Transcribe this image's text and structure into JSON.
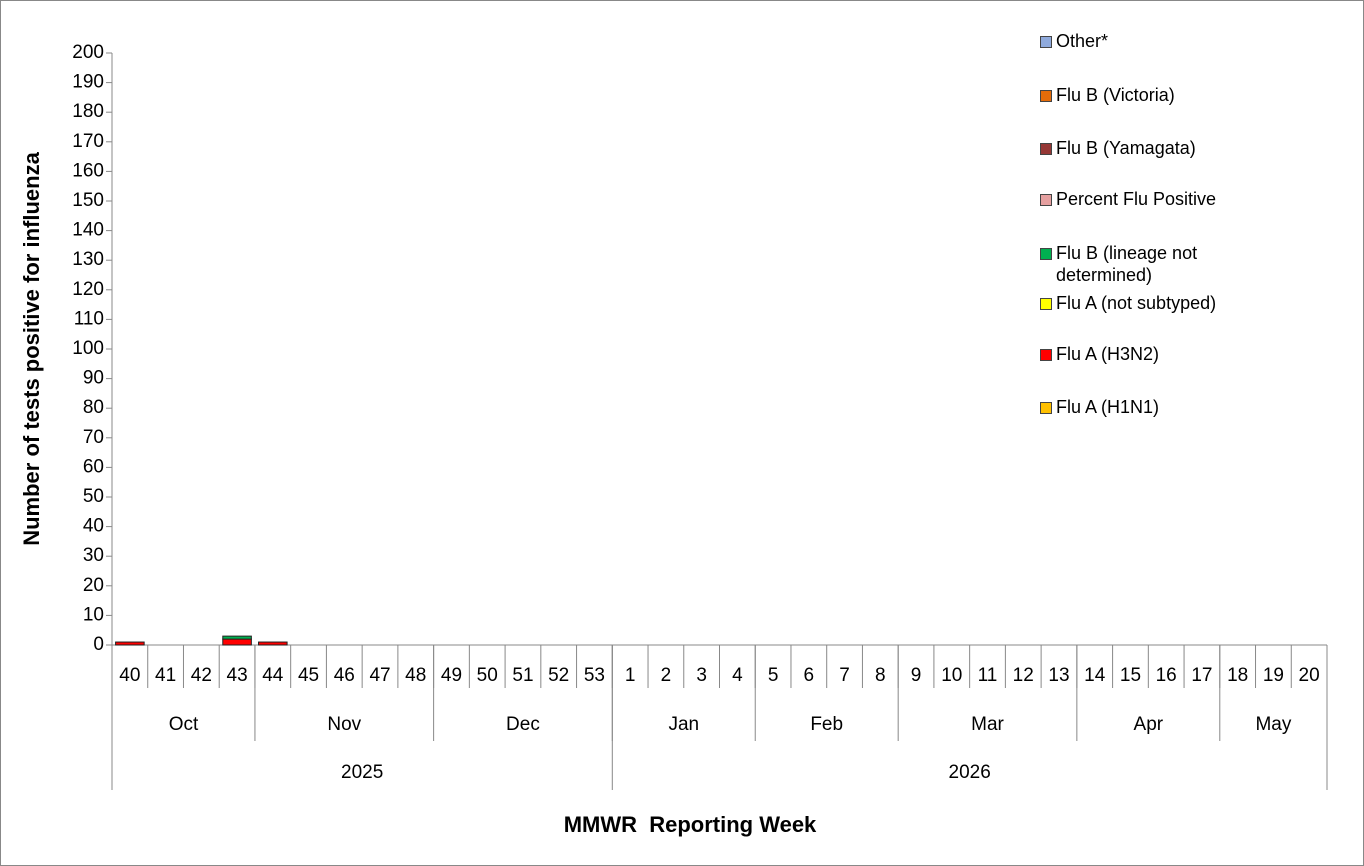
{
  "chart_data": {
    "type": "stacked_bar",
    "y_label": "Number of tests positive for influenza",
    "x_label": "MMWR  Reporting Week",
    "categories": [
      [
        "2025",
        "Oct",
        "40"
      ],
      [
        "2025",
        "Oct",
        "41"
      ],
      [
        "2025",
        "Oct",
        "42"
      ],
      [
        "2025",
        "Oct",
        "43"
      ],
      [
        "2025",
        "Nov",
        "44"
      ],
      [
        "2025",
        "Nov",
        "45"
      ],
      [
        "2025",
        "Nov",
        "46"
      ],
      [
        "2025",
        "Nov",
        "47"
      ],
      [
        "2025",
        "Nov",
        "48"
      ],
      [
        "2025",
        "Dec",
        "49"
      ],
      [
        "2025",
        "Dec",
        "50"
      ],
      [
        "2025",
        "Dec",
        "51"
      ],
      [
        "2025",
        "Dec",
        "52"
      ],
      [
        "2025",
        "Dec",
        "53"
      ],
      [
        "2026",
        "Jan",
        "1"
      ],
      [
        "2026",
        "Jan",
        "2"
      ],
      [
        "2026",
        "Jan",
        "3"
      ],
      [
        "2026",
        "Jan",
        "4"
      ],
      [
        "2026",
        "Feb",
        "5"
      ],
      [
        "2026",
        "Feb",
        "6"
      ],
      [
        "2026",
        "Feb",
        "7"
      ],
      [
        "2026",
        "Feb",
        "8"
      ],
      [
        "2026",
        "Mar",
        "9"
      ],
      [
        "2026",
        "Mar",
        "10"
      ],
      [
        "2026",
        "Mar",
        "11"
      ],
      [
        "2026",
        "Mar",
        "12"
      ],
      [
        "2026",
        "Mar",
        "13"
      ],
      [
        "2026",
        "Apr",
        "14"
      ],
      [
        "2026",
        "Apr",
        "15"
      ],
      [
        "2026",
        "Apr",
        "16"
      ],
      [
        "2026",
        "Apr",
        "17"
      ],
      [
        "2026",
        "May",
        "18"
      ],
      [
        "2026",
        "May",
        "19"
      ],
      [
        "2026",
        "May",
        "20"
      ]
    ],
    "series": [
      {
        "name": "Flu A (H1N1)",
        "color": "#ffc000",
        "values": [
          0,
          0,
          0,
          0,
          0,
          0,
          0,
          0,
          0,
          0,
          0,
          0,
          0,
          0,
          0,
          0,
          0,
          0,
          0,
          0,
          0,
          0,
          0,
          0,
          0,
          0,
          0,
          0,
          0,
          0,
          0,
          0,
          0,
          0
        ]
      },
      {
        "name": "Flu A (H3N2)",
        "color": "#ff0000",
        "values": [
          1,
          0,
          0,
          2,
          1,
          0,
          0,
          0,
          0,
          0,
          0,
          0,
          0,
          0,
          0,
          0,
          0,
          0,
          0,
          0,
          0,
          0,
          0,
          0,
          0,
          0,
          0,
          0,
          0,
          0,
          0,
          0,
          0,
          0
        ]
      },
      {
        "name": "Flu A (not subtyped)",
        "color": "#ffff00",
        "values": [
          0,
          0,
          0,
          0,
          0,
          0,
          0,
          0,
          0,
          0,
          0,
          0,
          0,
          0,
          0,
          0,
          0,
          0,
          0,
          0,
          0,
          0,
          0,
          0,
          0,
          0,
          0,
          0,
          0,
          0,
          0,
          0,
          0,
          0
        ]
      },
      {
        "name": "Flu B (lineage not determined)",
        "color": "#00b050",
        "values": [
          0,
          0,
          0,
          1,
          0,
          0,
          0,
          0,
          0,
          0,
          0,
          0,
          0,
          0,
          0,
          0,
          0,
          0,
          0,
          0,
          0,
          0,
          0,
          0,
          0,
          0,
          0,
          0,
          0,
          0,
          0,
          0,
          0,
          0
        ]
      },
      {
        "name": "Percent Flu Positive",
        "color": "#e6a0a0",
        "values": [
          0,
          0,
          0,
          0,
          0,
          0,
          0,
          0,
          0,
          0,
          0,
          0,
          0,
          0,
          0,
          0,
          0,
          0,
          0,
          0,
          0,
          0,
          0,
          0,
          0,
          0,
          0,
          0,
          0,
          0,
          0,
          0,
          0,
          0
        ]
      },
      {
        "name": "Flu B (Yamagata)",
        "color": "#953735",
        "values": [
          0,
          0,
          0,
          0,
          0,
          0,
          0,
          0,
          0,
          0,
          0,
          0,
          0,
          0,
          0,
          0,
          0,
          0,
          0,
          0,
          0,
          0,
          0,
          0,
          0,
          0,
          0,
          0,
          0,
          0,
          0,
          0,
          0,
          0
        ]
      },
      {
        "name": "Flu B (Victoria)",
        "color": "#e46c0a",
        "values": [
          0,
          0,
          0,
          0,
          0,
          0,
          0,
          0,
          0,
          0,
          0,
          0,
          0,
          0,
          0,
          0,
          0,
          0,
          0,
          0,
          0,
          0,
          0,
          0,
          0,
          0,
          0,
          0,
          0,
          0,
          0,
          0,
          0,
          0
        ]
      },
      {
        "name": "Other*",
        "color": "#8faadc",
        "values": [
          0,
          0,
          0,
          0,
          0,
          0,
          0,
          0,
          0,
          0,
          0,
          0,
          0,
          0,
          0,
          0,
          0,
          0,
          0,
          0,
          0,
          0,
          0,
          0,
          0,
          0,
          0,
          0,
          0,
          0,
          0,
          0,
          0,
          0
        ]
      }
    ],
    "ylim": [
      0,
      200
    ],
    "yticks": [
      0,
      10,
      20,
      30,
      40,
      50,
      60,
      70,
      80,
      90,
      100,
      110,
      120,
      130,
      140,
      150,
      160,
      170,
      180,
      190,
      200
    ],
    "grid": false,
    "legend": "right"
  }
}
